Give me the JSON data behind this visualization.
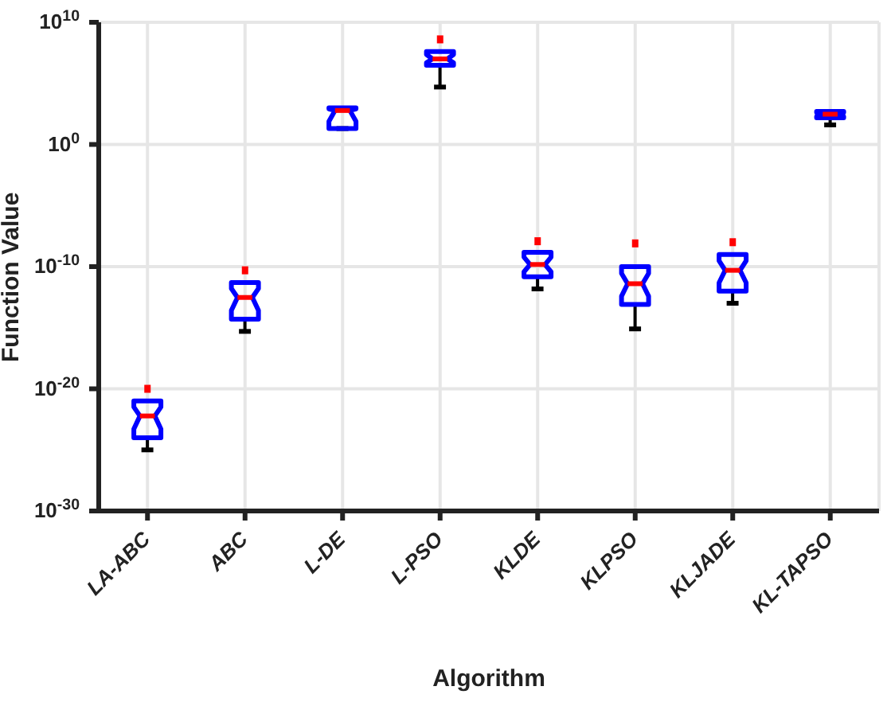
{
  "chart_data": {
    "type": "box",
    "xlabel": "Algorithm",
    "ylabel": "Function Value",
    "categories": [
      "LA-ABC",
      "ABC",
      "L-DE",
      "L-PSO",
      "KLDE",
      "KLPSO",
      "KLJADE",
      "KL-TAPSO"
    ],
    "boxes": [
      {
        "low": 1e-25,
        "q1": 1e-24,
        "median": 6e-23,
        "q3": 1e-21,
        "high": 1e-21,
        "outliers": [
          1e-20
        ]
      },
      {
        "low": 5e-16,
        "q1": 5e-15,
        "median": 3e-13,
        "q3": 5e-12,
        "high": 5e-12,
        "outliers": [
          5e-11
        ]
      },
      {
        "low": 20.0,
        "q1": 20.0,
        "median": 600.0,
        "q3": 1000.0,
        "high": 1000.0
      },
      {
        "low": 50000.0,
        "q1": 3000000.0,
        "median": 10000000.0,
        "q3": 40000000.0,
        "high": 40000000.0,
        "outliers": [
          400000000.0
        ]
      },
      {
        "low": 1.5e-12,
        "q1": 1.5e-11,
        "median": 1.5e-10,
        "q3": 1.5e-09,
        "high": 1.5e-09,
        "outliers": [
          1.2e-08
        ]
      },
      {
        "low": 8e-16,
        "q1": 8e-14,
        "median": 4e-12,
        "q3": 1e-10,
        "high": 1e-10,
        "outliers": [
          8e-09
        ]
      },
      {
        "low": 1e-13,
        "q1": 1e-12,
        "median": 5e-11,
        "q3": 1e-09,
        "high": 1e-09,
        "outliers": [
          1e-08
        ]
      },
      {
        "low": 40.0,
        "q1": 150.0,
        "median": 300.0,
        "q3": 500.0,
        "high": 500.0
      }
    ],
    "log": "y",
    "ylim": [
      1e-30,
      10000000000.0
    ],
    "yticks": [
      {
        "value": 1e-30,
        "label": "10$^{-30}$"
      },
      {
        "value": 1e-20,
        "label": "10$^{-20}$"
      },
      {
        "value": 1e-10,
        "label": "10$^{-10}$"
      },
      {
        "value": 1,
        "label": "10$^{0}$"
      },
      {
        "value": 10000000000.0,
        "label": "10$^{10}$"
      }
    ],
    "grid": true
  }
}
